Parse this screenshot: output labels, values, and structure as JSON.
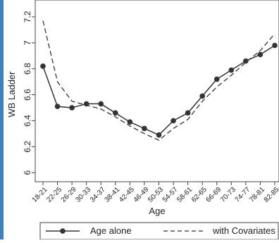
{
  "chart_data": {
    "type": "line",
    "title": "",
    "xlabel": "Age",
    "ylabel": "WB Ladder",
    "ylim": [
      6,
      7.4
    ],
    "yticks": [
      6,
      6.2,
      6.4,
      6.6,
      6.8,
      7,
      7.2
    ],
    "categories": [
      "18-21",
      "22-25",
      "26-29",
      "30-33",
      "34-37",
      "38-41",
      "42-45",
      "46-49",
      "50-53",
      "54-57",
      "58-61",
      "62-65",
      "66-69",
      "70-73",
      "74-77",
      "78-81",
      "82-85"
    ],
    "series": [
      {
        "name": "Age alone",
        "style": "solid-marker",
        "color": "#333333",
        "values": [
          6.82,
          6.51,
          6.5,
          6.53,
          6.53,
          6.46,
          6.39,
          6.34,
          6.29,
          6.4,
          6.46,
          6.59,
          6.72,
          6.79,
          6.86,
          6.91,
          6.98
        ]
      },
      {
        "name": "with Covariates",
        "style": "dashed",
        "color": "#333333",
        "values": [
          7.17,
          6.7,
          6.55,
          6.52,
          6.49,
          6.43,
          6.36,
          6.3,
          6.25,
          6.34,
          6.41,
          6.55,
          6.66,
          6.75,
          6.85,
          6.94,
          7.07
        ]
      }
    ],
    "legend_position": "bottom",
    "grid": false
  }
}
